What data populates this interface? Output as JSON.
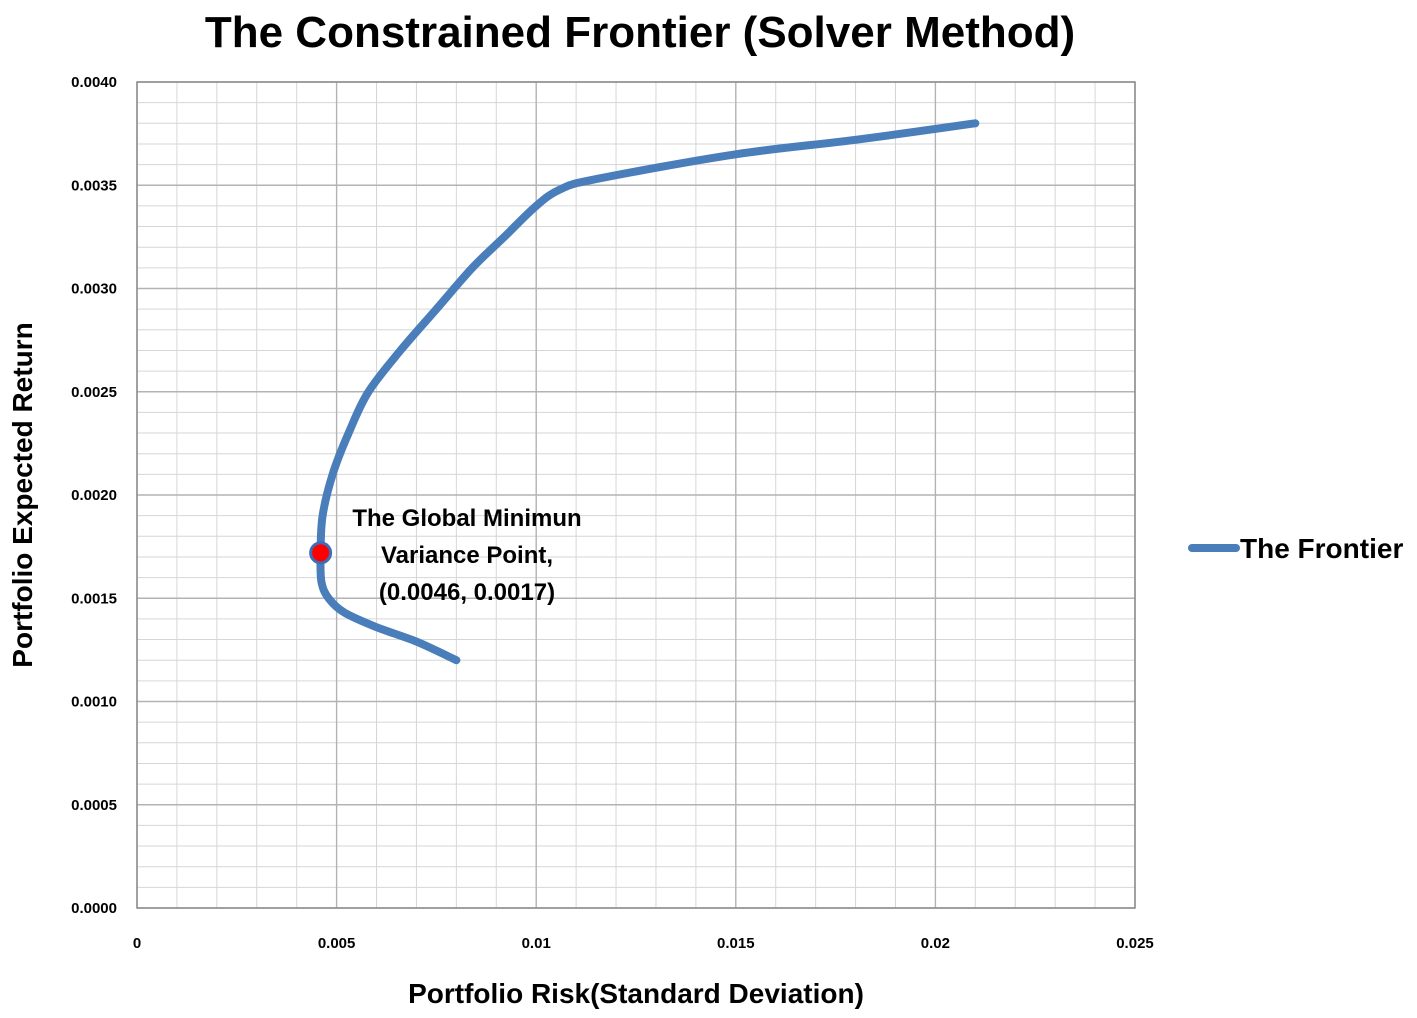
{
  "chart_data": {
    "type": "line",
    "title": "The Constrained Frontier  (Solver Method)",
    "xlabel": "Portfolio Risk(Standard Deviation)",
    "ylabel": "Portfolio Expected Return",
    "xlim": [
      0,
      0.025
    ],
    "ylim": [
      0,
      0.004
    ],
    "x_ticks": [
      "0",
      "0.005",
      "0.01",
      "0.015",
      "0.02",
      "0.025"
    ],
    "y_ticks": [
      "0.0000",
      "0.0005",
      "0.0010",
      "0.0015",
      "0.0020",
      "0.0025",
      "0.0030",
      "0.0035",
      "0.0040"
    ],
    "grid": true,
    "legend_position": "right",
    "series": [
      {
        "name": "The Frontier",
        "color": "#4a7ebb",
        "points": [
          [
            0.008,
            0.0012
          ],
          [
            0.007,
            0.00129
          ],
          [
            0.006,
            0.00136
          ],
          [
            0.0052,
            0.00143
          ],
          [
            0.0048,
            0.0015
          ],
          [
            0.00462,
            0.00158
          ],
          [
            0.0046,
            0.00172
          ],
          [
            0.00465,
            0.0019
          ],
          [
            0.0049,
            0.0021
          ],
          [
            0.0053,
            0.0023
          ],
          [
            0.0058,
            0.0025
          ],
          [
            0.0066,
            0.0027
          ],
          [
            0.0075,
            0.0029
          ],
          [
            0.0084,
            0.0031
          ],
          [
            0.0092,
            0.00325
          ],
          [
            0.01,
            0.0034
          ],
          [
            0.0106,
            0.00348
          ],
          [
            0.0115,
            0.00353
          ],
          [
            0.015,
            0.00365
          ],
          [
            0.018,
            0.00372
          ],
          [
            0.021,
            0.0038
          ]
        ]
      }
    ],
    "highlight_point": {
      "x": 0.0046,
      "y": 0.00172,
      "color": "#ff0000",
      "label_lines": [
        "The Global Minimun",
        "Variance Point,",
        "(0.0046, 0.0017)"
      ]
    }
  }
}
